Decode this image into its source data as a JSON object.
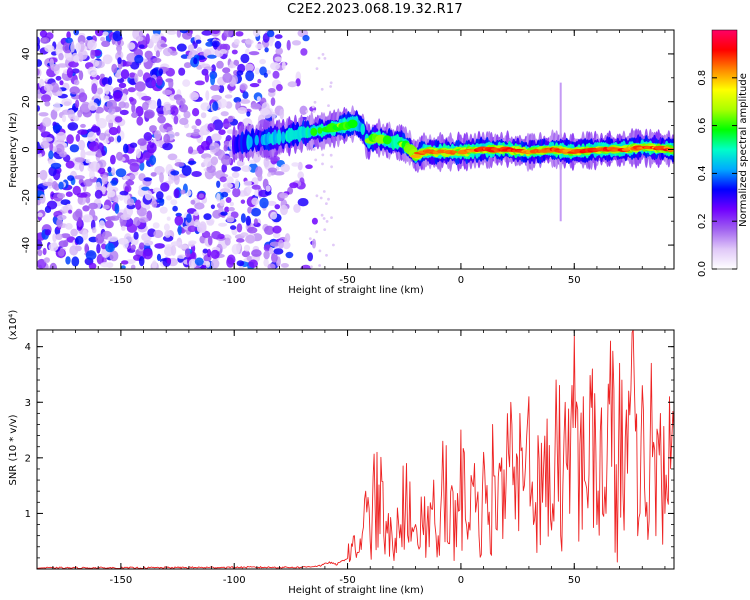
{
  "title": "C2E2.2023.068.19.32.R17",
  "colorbar": {
    "label": "Normalized spectral amplitude",
    "ticks": [
      "0.0",
      "0.2",
      "0.4",
      "0.6",
      "0.8"
    ],
    "tick_values": [
      0.0,
      0.2,
      0.4,
      0.6,
      0.8
    ],
    "range": [
      0,
      1
    ],
    "colormap": [
      "#ffffff",
      "#e0c8f8",
      "#a060f0",
      "#7000ff",
      "#0000ff",
      "#00aaff",
      "#00ffc8",
      "#00ff00",
      "#aaff00",
      "#ffff00",
      "#ff8800",
      "#ff0000",
      "#ff0066"
    ]
  },
  "chart_data": [
    {
      "type": "heatmap",
      "title": "",
      "xlabel": "Height of straight line (km)",
      "ylabel": "Frequency (Hz)",
      "xlim": [
        -187,
        94
      ],
      "ylim": [
        -50,
        50
      ],
      "xticks": [
        "-150",
        "-100",
        "-50",
        "0",
        "50"
      ],
      "xtick_values": [
        -150,
        -100,
        -50,
        0,
        50
      ],
      "yticks": [
        "-40",
        "-20",
        "0",
        "20",
        "40"
      ],
      "ytick_values": [
        -40,
        -20,
        0,
        20,
        40
      ],
      "noise_region_x": [
        -187,
        -70
      ],
      "ridge": {
        "x": [
          -100,
          -90,
          -80,
          -70,
          -60,
          -52,
          -46,
          -43,
          -41,
          -38,
          -34,
          -30,
          -26,
          -22,
          -20,
          -17,
          -10,
          0,
          10,
          20,
          30,
          40,
          50,
          60,
          70,
          80,
          94
        ],
        "freq_hz": [
          2,
          4,
          5,
          7,
          8,
          10,
          11,
          8,
          3,
          5,
          4,
          3,
          3,
          0,
          -3,
          -1,
          -1,
          -1,
          0,
          0,
          -1,
          0,
          -1,
          0,
          0,
          1,
          0
        ],
        "peak_amplitude": [
          0.35,
          0.4,
          0.45,
          0.5,
          0.55,
          0.6,
          0.5,
          0.45,
          0.5,
          0.7,
          0.6,
          0.55,
          0.6,
          0.7,
          0.75,
          0.9,
          0.85,
          0.8,
          0.9,
          0.95,
          0.85,
          0.9,
          0.85,
          0.95,
          0.9,
          0.85,
          0.9
        ]
      }
    },
    {
      "type": "line",
      "title": "",
      "xlabel": "Height of straight line (km)",
      "ylabel": "SNR (10 * v/v)",
      "yscale_label": "(x10⁴)",
      "xlim": [
        -187,
        94
      ],
      "ylim": [
        0,
        4.3
      ],
      "xticks": [
        "-150",
        "-100",
        "-50",
        "0",
        "50"
      ],
      "xtick_values": [
        -150,
        -100,
        -50,
        0,
        50
      ],
      "yticks": [
        "1",
        "2",
        "3",
        "4"
      ],
      "ytick_values": [
        1,
        2,
        3,
        4
      ],
      "color": "#ee2222",
      "series": [
        {
          "x": [
            -187,
            -150,
            -100,
            -70,
            -62,
            -58,
            -55,
            -52,
            -50,
            -47,
            -44,
            -42,
            -40,
            -37,
            -34,
            -32,
            -30,
            -28,
            -26,
            -24,
            -22,
            -20,
            -18,
            -16,
            -14,
            -12,
            -10,
            -8,
            -6,
            -4,
            -2,
            0,
            2,
            4,
            6,
            8,
            10,
            12,
            14,
            16,
            18,
            20,
            22,
            24,
            26,
            28,
            30,
            32,
            34,
            36,
            38,
            40,
            42,
            44,
            46,
            48,
            50,
            52,
            54,
            56,
            58,
            60,
            62,
            64,
            66,
            68,
            70,
            72,
            74,
            76,
            78,
            80,
            82,
            84,
            86,
            88,
            90,
            92,
            94
          ],
          "y": [
            0.02,
            0.02,
            0.03,
            0.03,
            0.06,
            0.12,
            0.08,
            0.15,
            0.2,
            0.6,
            0.35,
            1.4,
            0.5,
            2.1,
            0.6,
            1.0,
            0.35,
            1.1,
            0.4,
            1.9,
            0.5,
            0.8,
            0.4,
            1.3,
            0.4,
            1.6,
            0.6,
            2.3,
            0.5,
            1.5,
            0.4,
            2.5,
            0.9,
            0.7,
            1.9,
            0.6,
            2.1,
            0.8,
            2.6,
            0.7,
            2.0,
            1.6,
            3.0,
            0.9,
            2.8,
            1.5,
            3.1,
            0.8,
            2.4,
            1.2,
            2.7,
            0.7,
            3.4,
            0.6,
            3.0,
            1.0,
            4.2,
            0.5,
            3.1,
            1.1,
            3.6,
            0.8,
            2.9,
            1.0,
            4.1,
            0.3,
            3.7,
            0.7,
            3.2,
            4.3,
            0.6,
            3.3,
            1.2,
            3.7,
            0.6,
            2.8,
            1.0,
            3.1,
            2.5
          ]
        }
      ]
    }
  ]
}
